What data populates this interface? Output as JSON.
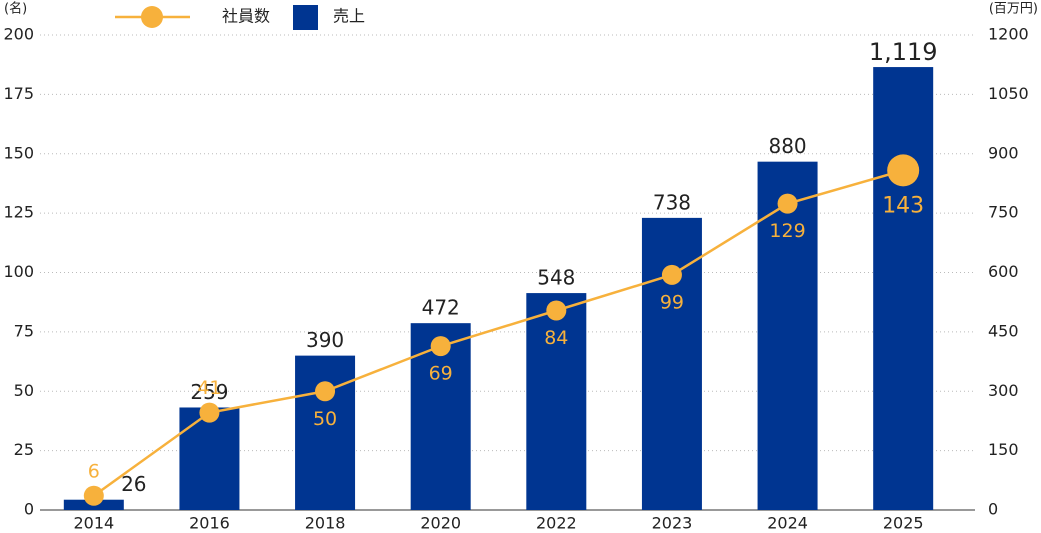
{
  "chart_data": {
    "type": "bar_line",
    "ylabel": "(名)",
    "y2label": "(百万円)",
    "categories": [
      "2014",
      "2016",
      "2018",
      "2020",
      "2022",
      "2023",
      "2024",
      "2025"
    ],
    "series": [
      {
        "name": "社員数",
        "type": "line",
        "color": "#f7b13c",
        "axis": "y",
        "values": [
          6,
          41,
          50,
          69,
          84,
          99,
          129,
          143
        ]
      },
      {
        "name": "売上",
        "type": "bar",
        "color": "#003591",
        "axis": "y2",
        "values": [
          26,
          259,
          390,
          472,
          548,
          738,
          880,
          1119
        ],
        "value_labels": [
          "26",
          "259",
          "390",
          "472",
          "548",
          "738",
          "880",
          "1,119"
        ]
      }
    ],
    "ylim": [
      0,
      200
    ],
    "yticks": [
      0,
      25,
      50,
      75,
      100,
      125,
      150,
      175,
      200
    ],
    "y2lim": [
      0,
      1200
    ],
    "y2ticks": [
      0,
      150,
      300,
      450,
      600,
      750,
      900,
      {
        "value": 1050,
        "label": "1050"
      },
      {
        "value": 1200,
        "label": "1200"
      }
    ],
    "grid": true,
    "legend": "top"
  }
}
